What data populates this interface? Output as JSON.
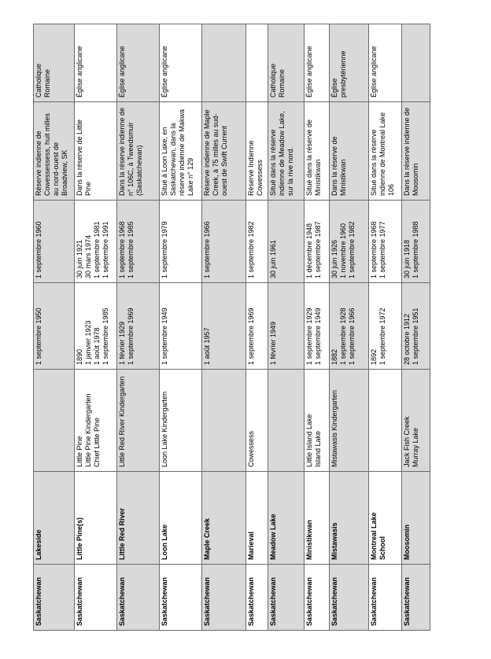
{
  "page": {
    "background_color": "#ffffff",
    "shade_color": "#d9d9d9",
    "border_color": "#6b6b6b"
  },
  "table": {
    "orientation": "rotated 90 degrees counterclockwise",
    "columns": [
      "province",
      "name",
      "other_names",
      "opened",
      "closed",
      "location",
      "religion"
    ],
    "rows": [
      {
        "province": "Saskatchewan",
        "name": [
          "Lakeside"
        ],
        "other_names": [],
        "opened": [
          "1 septembre 1950"
        ],
        "closed": [
          "1 septembre 1960"
        ],
        "location": "Réserve indienne de Cowessessess, huit milles au nord-ouest de Broadview, SK",
        "religion": [
          "Catholique",
          "Romaine"
        ]
      },
      {
        "province": "Saskatchewan",
        "name": [
          "Little Pine(s)"
        ],
        "other_names": [
          "Little Pine",
          "Little Pine Kindergarten",
          "Chief Little Pine"
        ],
        "opened": [
          "1890",
          "1 janvier 1923",
          "1 août 1978",
          "1 septembre 1985"
        ],
        "closed": [
          "30 juin 1921",
          "30 mars 1974",
          "1 septembre 1981",
          "1 septembre 1991"
        ],
        "location": "Dans la réserve de Little Pine",
        "religion": [
          "Église anglicane"
        ]
      },
      {
        "province": "Saskatchewan",
        "name": [
          "Little Red River"
        ],
        "other_names": [
          "Little Red River Kindergarten"
        ],
        "opened": [
          "1 février 1929",
          "1 septembre 1969"
        ],
        "closed": [
          "1 septembre 1968",
          "1 septembre 1985"
        ],
        "location": "Dans la réserve indienne de n° 106C, à Tweedsmuir (Saskatchewan)",
        "religion": [
          "Église anglicane"
        ]
      },
      {
        "province": "Saskatchewan",
        "name": [
          "Loon Lake"
        ],
        "other_names": [
          "Loon Lake Kindergarten"
        ],
        "opened": [
          "1 septembre 1949"
        ],
        "closed": [
          "1 septembre 1979"
        ],
        "location": "Situé à Loon Lake, en Saskatchewan, dans la réserve indienne de Makwa Lake n° 129",
        "religion": [
          "Église anglicane"
        ]
      },
      {
        "province": "Saskatchewan",
        "name": [
          "Maple Creek"
        ],
        "other_names": [],
        "opened": [
          "1 août 1957"
        ],
        "closed": [
          "1 septembre 1966"
        ],
        "location": "Réserve indienne de Maple Creek, à 75 milles au sud-ouest de Swift Current",
        "religion": []
      },
      {
        "province": "Saskatchewan",
        "name": [
          "Marieval"
        ],
        "other_names": [
          "Cowessess"
        ],
        "opened": [
          "1 septembre 1969"
        ],
        "closed": [
          "1 septembre 1982"
        ],
        "location": "Réserve Indienne Cowessess",
        "religion": []
      },
      {
        "province": "Saskatchewan",
        "name": [
          "Meadow Lake"
        ],
        "other_names": [],
        "opened": [
          "1 février 1949"
        ],
        "closed": [
          "30 juin 1961"
        ],
        "location": "Situé dans la réserve indienne de Meadow Lake, sur la rive nord.",
        "religion": [
          "Catholique",
          "Romaine"
        ]
      },
      {
        "province": "Saskatchewan",
        "name": [
          "Ministikwan"
        ],
        "other_names": [
          "Little Island Lake",
          "Island Lake"
        ],
        "opened": [
          "1 septembre 1929",
          "1 septembre 1949"
        ],
        "closed": [
          "1 décembre 1948",
          "1 septembre 1987"
        ],
        "location": "Situé dans la réserve de Ministikwan",
        "religion": [
          "Église anglicane"
        ]
      },
      {
        "province": "Saskatchewan",
        "name": [
          "Mistawasis"
        ],
        "other_names": [
          "Mistawasis Kindergarten"
        ],
        "opened": [
          "1882",
          "1 septembre 1928",
          "1 septembre 1966"
        ],
        "closed": [
          "30 juin 1926",
          "1 novembre 1960",
          "1 septembre 1982"
        ],
        "location": "Dans la réserve de Ministikwan",
        "religion": [
          "Église",
          "presbytérienne"
        ]
      },
      {
        "province": "Saskatchewan",
        "name": [
          "Montreal Lake",
          "School"
        ],
        "other_names": [],
        "opened": [
          "1892",
          "1 septembre 1972"
        ],
        "closed": [
          "1 septembre 1968",
          "1 septembre 1977"
        ],
        "location": "Situé dans la réserve indienne de Montreal Lake 106",
        "religion": [
          "Église anglicane"
        ]
      },
      {
        "province": "Saskatchewan",
        "name": [
          "Moosomin"
        ],
        "other_names": [
          "Jack Fish Creek",
          "Murray Lake"
        ],
        "opened": [
          "28 octobre 1912",
          "1 septembre 1951"
        ],
        "closed": [
          "30 juin 1918",
          "1 septembre 1988"
        ],
        "location": "Dans la réserve indienne de Moosomin",
        "religion": []
      }
    ]
  }
}
